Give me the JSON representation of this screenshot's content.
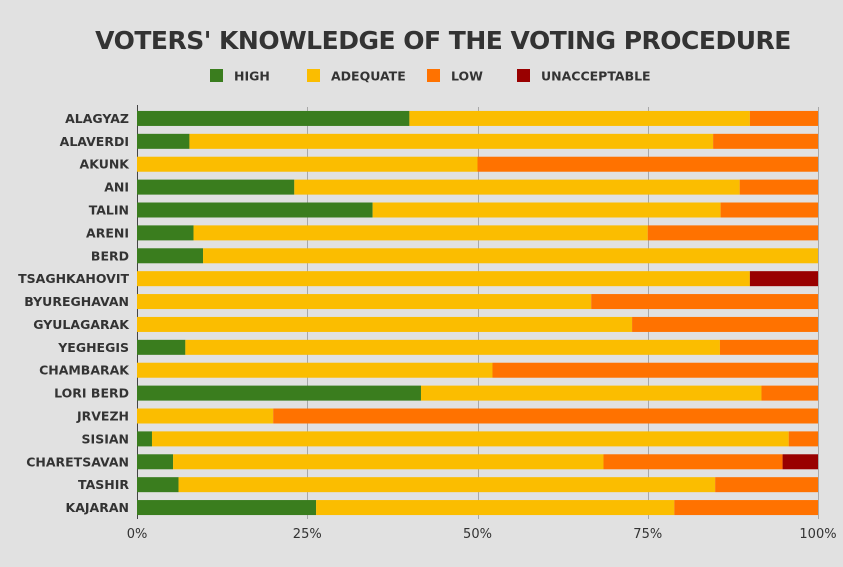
{
  "chart_data": {
    "type": "bar",
    "orientation": "horizontal",
    "stacked": true,
    "title": "VOTERS' KNOWLEDGE OF THE VOTING PROCEDURE",
    "legend_position": "top",
    "xlim": [
      0,
      100
    ],
    "x_ticks": [
      "0%",
      "25%",
      "50%",
      "75%",
      "100%"
    ],
    "grid": true,
    "categories": [
      "ALAGYAZ",
      "ALAVERDI",
      "AKUNK",
      "ANI",
      "TALIN",
      "ARENI",
      "BERD",
      "TSAGHKAHOVIT",
      "BYUREGHAVAN",
      "GYULAGARAK",
      "YEGHEGIS",
      "CHAMBARAK",
      "LORI BERD",
      "JRVEZH",
      "SISIAN",
      "CHARETSAVAN",
      "TASHIR",
      "KAJARAN"
    ],
    "series": [
      {
        "name": "HIGH",
        "color": "#3a7d1e",
        "values": [
          40,
          7.7,
          0,
          23.1,
          34.6,
          8.3,
          9.7,
          0,
          0,
          0,
          7.1,
          0,
          41.7,
          0,
          2.2,
          5.3,
          6.1,
          26.3
        ]
      },
      {
        "name": "ADEQUATE",
        "color": "#fbbd00",
        "values": [
          50,
          76.9,
          50,
          65.4,
          51.1,
          66.7,
          90.3,
          90,
          66.7,
          72.7,
          78.5,
          52.2,
          50,
          20,
          93.5,
          63.2,
          78.8,
          52.6
        ]
      },
      {
        "name": "LOW",
        "color": "#ff7200",
        "values": [
          10,
          15.4,
          50,
          11.5,
          14.3,
          25,
          0,
          0,
          33.3,
          27.3,
          14.4,
          47.8,
          8.3,
          80,
          4.3,
          26.3,
          15.1,
          21.1
        ]
      },
      {
        "name": "UNACCEPTABLE",
        "color": "#990000",
        "values": [
          0,
          0,
          0,
          0,
          0,
          0,
          0,
          10,
          0,
          0,
          0,
          0,
          0,
          0,
          0,
          5.2,
          0,
          0
        ]
      }
    ]
  }
}
